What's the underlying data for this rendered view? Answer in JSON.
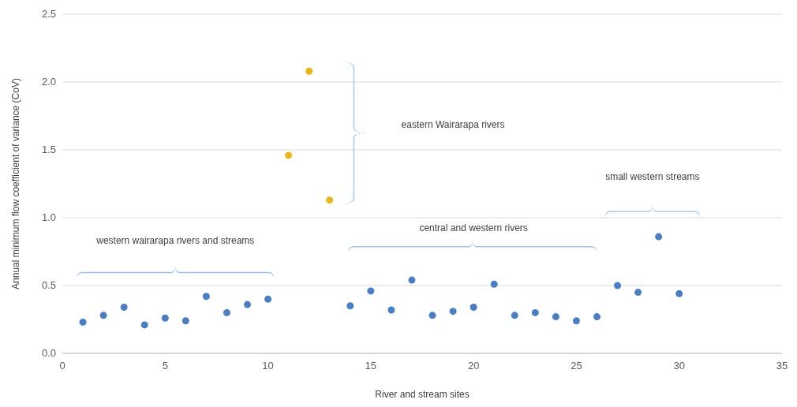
{
  "chart_data": {
    "type": "scatter",
    "xlabel": "River and stream sites",
    "ylabel": "Annual minimum flow coefficient of variance (CoV)",
    "series": [
      {
        "color": "#4a7ebf",
        "x": [
          1,
          2,
          3,
          4,
          5,
          6,
          7,
          8,
          9,
          10,
          14,
          15,
          16,
          17,
          18,
          19,
          20,
          21,
          22,
          23,
          24,
          25,
          26,
          27,
          28,
          29,
          30
        ],
        "values": [
          0.23,
          0.28,
          0.34,
          0.21,
          0.26,
          0.24,
          0.42,
          0.3,
          0.36,
          0.4,
          0.35,
          0.46,
          0.32,
          0.54,
          0.28,
          0.31,
          0.34,
          0.51,
          0.28,
          0.3,
          0.27,
          0.24,
          0.27,
          0.5,
          0.45,
          0.86,
          0.44
        ]
      },
      {
        "color": "#e8b520",
        "x": [
          11,
          12,
          13
        ],
        "values": [
          1.46,
          2.08,
          1.13
        ]
      }
    ],
    "xlim": [
      0,
      35
    ],
    "xticks": [
      0,
      5,
      10,
      15,
      20,
      25,
      30,
      35
    ],
    "ylim": [
      0,
      2.5
    ],
    "yticks": [
      {
        "value": 0,
        "label": "0.0"
      },
      {
        "value": 0.5,
        "label": "0.5"
      },
      {
        "value": 1,
        "label": "1.0"
      },
      {
        "value": 1.5,
        "label": "1.5"
      },
      {
        "value": 2,
        "label": "2.0"
      },
      {
        "value": 2.5,
        "label": "2.5"
      }
    ],
    "grid": "y",
    "marker": "circle",
    "annotations": [
      "western wairarapa rivers and streams",
      "eastern Wairarapa rivers",
      "central and western rivers",
      "small western streams"
    ]
  }
}
